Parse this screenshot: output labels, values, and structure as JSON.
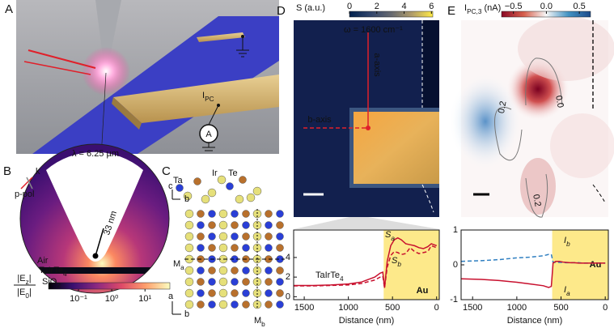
{
  "panel_a": {
    "label": "A",
    "photocurrent": {
      "main": "I",
      "sub": "PC"
    },
    "ammeter": "A"
  },
  "panel_b": {
    "label": "B",
    "wavelength": "λ = 6.25 µm",
    "tip_radius": "33 nm",
    "polarization": "p-pol",
    "wavevector": "k",
    "layers": {
      "top": "Air",
      "middle": {
        "main": "TaIrTe",
        "sub": "4"
      },
      "bottom": {
        "main": "SiO",
        "sub": "2"
      }
    },
    "colorbar": {
      "numerator": {
        "main": "|E",
        "sub": "z",
        "tail": "|"
      },
      "denominator": {
        "main": "|E",
        "sub": "0",
        "tail": "|"
      },
      "log": true,
      "lim": [
        0.0126,
        56
      ],
      "ticks": [
        {
          "value": 0.1,
          "label": "10⁻¹"
        },
        {
          "value": 1,
          "label": "10⁰"
        },
        {
          "value": 10,
          "label": "10¹"
        }
      ]
    }
  },
  "panel_c": {
    "label": "C",
    "atoms": [
      "Ta",
      "Ir",
      "Te"
    ],
    "axes_top": [
      "c",
      "b"
    ],
    "axes_bottom": [
      "a",
      "b"
    ],
    "mirror_a": {
      "main": "M",
      "sub": "a"
    },
    "mirror_b": {
      "main": "M",
      "sub": "b"
    }
  },
  "panel_d": {
    "label": "D",
    "frequency": "ω = 1600 cm⁻¹",
    "axis_a": "a-axis",
    "axis_b": "b-axis",
    "colorbar": {
      "label": "S (a.u.)",
      "lim": [
        0,
        6.1
      ],
      "ticks": [
        0,
        2,
        4,
        6
      ]
    }
  },
  "panel_e": {
    "label": "E",
    "contours": [
      "0.2",
      "0.0",
      "0.2"
    ],
    "colorbar": {
      "label": {
        "main": "I",
        "sub": "PC,3",
        "tail": " (nA)"
      },
      "lim": [
        -0.68,
        0.67
      ],
      "ticks": [
        {
          "value": -0.5,
          "label": "−0.5"
        },
        {
          "value": 0,
          "label": "0.0"
        },
        0.5
      ]
    }
  },
  "chart_data": [
    {
      "type": "line",
      "xlabel": "Distance (nm)",
      "xlim": [
        1620,
        -30
      ],
      "xticks": [
        1500,
        1000,
        500,
        0
      ],
      "ylim": [
        -0.3,
        6.8
      ],
      "yticks": [
        0,
        2,
        4
      ],
      "x": [
        1620,
        1400,
        1200,
        1000,
        850,
        700,
        640,
        610,
        590,
        560,
        520,
        480,
        440,
        400,
        350,
        300,
        250,
        200,
        150,
        100,
        60,
        30,
        0
      ],
      "series": [
        {
          "name": {
            "main": "S",
            "sub": "a"
          },
          "color": "#c8102e",
          "dashed": false,
          "values": [
            1.15,
            1.15,
            1.2,
            1.3,
            1.5,
            2.0,
            2.4,
            2.5,
            0.9,
            3.6,
            5.2,
            5.8,
            6.0,
            5.8,
            5.4,
            5.3,
            5.2,
            5.0,
            4.9,
            5.1,
            5.4,
            5.3,
            5.2
          ]
        },
        {
          "name": {
            "main": "S",
            "sub": "b"
          },
          "color": "#c8102e",
          "dashed": true,
          "values": [
            1.1,
            1.1,
            1.15,
            1.2,
            1.35,
            1.7,
            2.0,
            2.1,
            0.9,
            3.0,
            4.2,
            4.6,
            4.5,
            4.3,
            4.4,
            5.0,
            4.6,
            4.4,
            4.5,
            4.6,
            5.2,
            5.1,
            5.0
          ]
        }
      ],
      "annotation": {
        "main": "TaIrTe",
        "sub": "4"
      },
      "highlight": {
        "label": "Au",
        "xrange": [
          600,
          -30
        ]
      }
    },
    {
      "type": "line",
      "xlabel": "Distance (nm)",
      "xlim": [
        1630,
        -35
      ],
      "xticks": [
        1500,
        1000,
        500,
        0
      ],
      "ylim": [
        -1,
        1
      ],
      "yticks": [
        -1,
        0,
        1
      ],
      "x": [
        1630,
        1400,
        1200,
        1000,
        850,
        700,
        640,
        610,
        590,
        560,
        520,
        480,
        440,
        400,
        350,
        300,
        250,
        200,
        150,
        100,
        60,
        30,
        0
      ],
      "series": [
        {
          "name": {
            "main": "I",
            "sub": "b"
          },
          "color": "#2f7fc1",
          "dashed": true,
          "values": [
            0.1,
            0.12,
            0.15,
            0.2,
            0.22,
            0.26,
            0.3,
            0.3,
            0.08,
            0.07,
            0.07,
            0.07,
            0.06,
            0.06,
            0.06,
            0.06,
            0.05,
            0.05,
            0.05,
            0.05,
            0.05,
            0.05,
            0.05
          ]
        },
        {
          "name": {
            "main": "I",
            "sub": "a"
          },
          "color": "#c8102e",
          "dashed": false,
          "values": [
            -0.4,
            -0.42,
            -0.45,
            -0.5,
            -0.55,
            -0.6,
            -0.65,
            -0.62,
            0.05,
            0.1,
            0.1,
            0.08,
            0.07,
            0.06,
            0.06,
            0.05,
            0.05,
            0.05,
            0.05,
            0.05,
            0.05,
            0.05,
            0.05
          ]
        }
      ],
      "highlight": {
        "label": "Au",
        "xrange": [
          600,
          -35
        ]
      }
    }
  ]
}
